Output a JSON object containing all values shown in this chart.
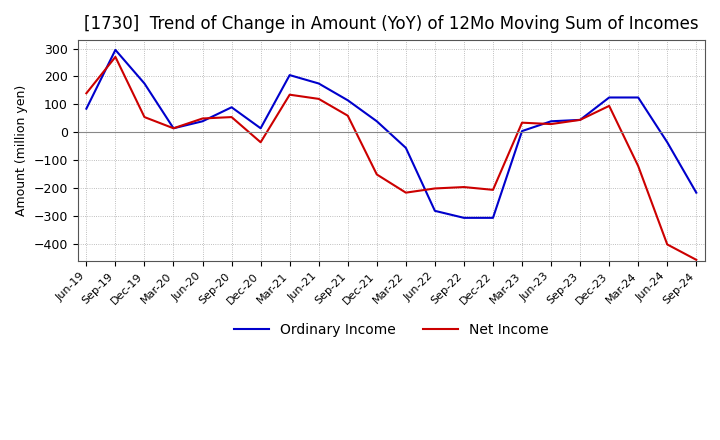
{
  "title": "[1730]  Trend of Change in Amount (YoY) of 12Mo Moving Sum of Incomes",
  "ylabel": "Amount (million yen)",
  "x_labels": [
    "Jun-19",
    "Sep-19",
    "Dec-19",
    "Mar-20",
    "Jun-20",
    "Sep-20",
    "Dec-20",
    "Mar-21",
    "Jun-21",
    "Sep-21",
    "Dec-21",
    "Mar-22",
    "Jun-22",
    "Sep-22",
    "Dec-22",
    "Mar-23",
    "Jun-23",
    "Sep-23",
    "Dec-23",
    "Mar-24",
    "Jun-24",
    "Sep-24"
  ],
  "ordinary_income": [
    85,
    295,
    175,
    15,
    40,
    90,
    15,
    205,
    175,
    115,
    40,
    -55,
    -280,
    -305,
    -305,
    5,
    40,
    45,
    125,
    125,
    -35,
    -215
  ],
  "net_income": [
    140,
    270,
    55,
    15,
    50,
    55,
    -35,
    135,
    120,
    60,
    -150,
    -215,
    -200,
    -195,
    -205,
    35,
    30,
    45,
    95,
    -120,
    -400,
    -455
  ],
  "ordinary_color": "#0000cc",
  "net_color": "#cc0000",
  "background_color": "#ffffff",
  "grid_color": "#aaaaaa",
  "ylim": [
    -460,
    330
  ],
  "yticks": [
    -400,
    -300,
    -200,
    -100,
    0,
    100,
    200,
    300
  ],
  "title_fontsize": 12,
  "axis_fontsize": 9,
  "legend_fontsize": 10,
  "linewidth": 1.5
}
